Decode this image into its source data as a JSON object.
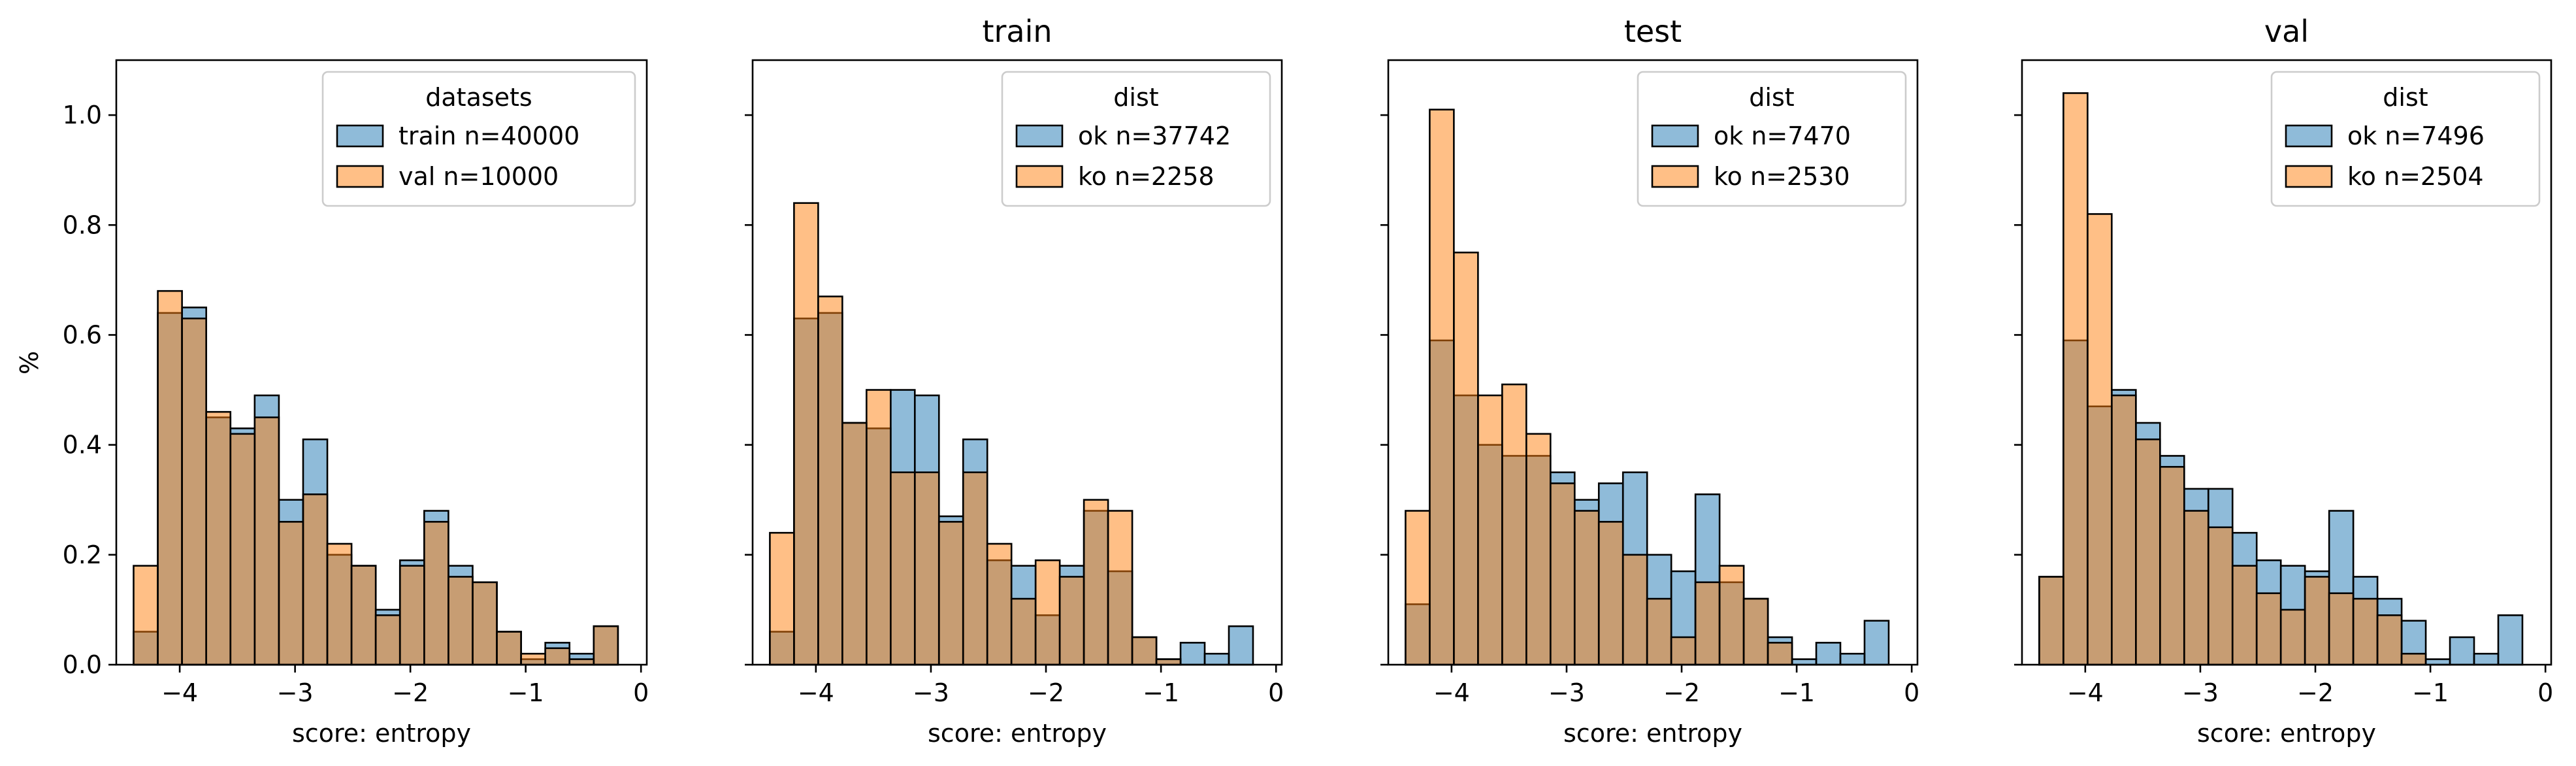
{
  "chart_data": [
    {
      "type": "bar",
      "title": "",
      "xlabel": "score: entropy",
      "ylabel": "%",
      "xlim": [
        -4.55,
        0.05
      ],
      "ylim": [
        0,
        1.1
      ],
      "xticks": [
        -4,
        -3,
        -2,
        -1,
        0
      ],
      "yticks": [
        0.0,
        0.2,
        0.4,
        0.6,
        0.8,
        1.0
      ],
      "legend": {
        "title": "datasets",
        "placement": "top-right"
      },
      "bin_edges": [
        -4.4,
        -4.19,
        -3.98,
        -3.77,
        -3.56,
        -3.35,
        -3.14,
        -2.93,
        -2.72,
        -2.51,
        -2.3,
        -2.09,
        -1.88,
        -1.67,
        -1.46,
        -1.25,
        -1.04,
        -0.83,
        -0.62,
        -0.41,
        -0.2
      ],
      "series": [
        {
          "name": "train n=40000",
          "color": "#1f77b4",
          "values": [
            0.06,
            0.64,
            0.65,
            0.45,
            0.43,
            0.49,
            0.3,
            0.41,
            0.2,
            0.18,
            0.1,
            0.19,
            0.28,
            0.18,
            0.15,
            0.06,
            0.01,
            0.04,
            0.02,
            0.07
          ]
        },
        {
          "name": "val n=10000",
          "color": "#ff7f0e",
          "values": [
            0.18,
            0.68,
            0.63,
            0.46,
            0.42,
            0.45,
            0.26,
            0.31,
            0.22,
            0.18,
            0.09,
            0.18,
            0.26,
            0.16,
            0.15,
            0.06,
            0.02,
            0.03,
            0.01,
            0.07
          ]
        }
      ]
    },
    {
      "type": "bar",
      "title": "train",
      "xlabel": "score: entropy",
      "ylabel": "",
      "xlim": [
        -4.55,
        0.05
      ],
      "ylim": [
        0,
        1.1
      ],
      "xticks": [
        -4,
        -3,
        -2,
        -1,
        0
      ],
      "yticks": [
        0.0,
        0.2,
        0.4,
        0.6,
        0.8,
        1.0
      ],
      "legend": {
        "title": "dist",
        "placement": "top-right"
      },
      "bin_edges": [
        -4.4,
        -4.19,
        -3.98,
        -3.77,
        -3.56,
        -3.35,
        -3.14,
        -2.93,
        -2.72,
        -2.51,
        -2.3,
        -2.09,
        -1.88,
        -1.67,
        -1.46,
        -1.25,
        -1.04,
        -0.83,
        -0.62,
        -0.41,
        -0.2
      ],
      "series": [
        {
          "name": "ok n=37742",
          "color": "#1f77b4",
          "values": [
            0.06,
            0.63,
            0.64,
            0.44,
            0.43,
            0.5,
            0.49,
            0.27,
            0.41,
            0.19,
            0.18,
            0.09,
            0.18,
            0.28,
            0.17,
            0.05,
            0.01,
            0.04,
            0.02,
            0.07
          ]
        },
        {
          "name": "ko n=2258",
          "color": "#ff7f0e",
          "values": [
            0.24,
            0.84,
            0.67,
            0.44,
            0.5,
            0.35,
            0.35,
            0.26,
            0.35,
            0.22,
            0.12,
            0.19,
            0.16,
            0.3,
            0.28,
            0.05,
            0.01,
            0.0,
            0.0,
            0.0
          ]
        }
      ]
    },
    {
      "type": "bar",
      "title": "test",
      "xlabel": "score: entropy",
      "ylabel": "",
      "xlim": [
        -4.55,
        0.05
      ],
      "ylim": [
        0,
        1.1
      ],
      "xticks": [
        -4,
        -3,
        -2,
        -1,
        0
      ],
      "yticks": [
        0.0,
        0.2,
        0.4,
        0.6,
        0.8,
        1.0
      ],
      "legend": {
        "title": "dist",
        "placement": "top-right"
      },
      "bin_edges": [
        -4.4,
        -4.19,
        -3.98,
        -3.77,
        -3.56,
        -3.35,
        -3.14,
        -2.93,
        -2.72,
        -2.51,
        -2.3,
        -2.09,
        -1.88,
        -1.67,
        -1.46,
        -1.25,
        -1.04,
        -0.83,
        -0.62,
        -0.41,
        -0.2
      ],
      "series": [
        {
          "name": "ok n=7470",
          "color": "#1f77b4",
          "values": [
            0.11,
            0.59,
            0.49,
            0.4,
            0.38,
            0.38,
            0.35,
            0.3,
            0.33,
            0.35,
            0.2,
            0.17,
            0.31,
            0.15,
            0.12,
            0.05,
            0.01,
            0.04,
            0.02,
            0.08
          ]
        },
        {
          "name": "ko n=2530",
          "color": "#ff7f0e",
          "values": [
            0.28,
            1.01,
            0.75,
            0.49,
            0.51,
            0.42,
            0.33,
            0.28,
            0.26,
            0.2,
            0.12,
            0.05,
            0.15,
            0.18,
            0.12,
            0.04,
            0.0,
            0.0,
            0.0,
            0.0
          ]
        }
      ]
    },
    {
      "type": "bar",
      "title": "val",
      "xlabel": "score: entropy",
      "ylabel": "",
      "xlim": [
        -4.55,
        0.05
      ],
      "ylim": [
        0,
        1.1
      ],
      "xticks": [
        -4,
        -3,
        -2,
        -1,
        0
      ],
      "yticks": [
        0.0,
        0.2,
        0.4,
        0.6,
        0.8,
        1.0
      ],
      "legend": {
        "title": "dist",
        "placement": "top-right"
      },
      "bin_edges": [
        -4.4,
        -4.19,
        -3.98,
        -3.77,
        -3.56,
        -3.35,
        -3.14,
        -2.93,
        -2.72,
        -2.51,
        -2.3,
        -2.09,
        -1.88,
        -1.67,
        -1.46,
        -1.25,
        -1.04,
        -0.83,
        -0.62,
        -0.41,
        -0.2
      ],
      "series": [
        {
          "name": "ok n=7496",
          "color": "#1f77b4",
          "values": [
            0.16,
            0.59,
            0.47,
            0.5,
            0.44,
            0.38,
            0.32,
            0.32,
            0.24,
            0.19,
            0.18,
            0.17,
            0.28,
            0.16,
            0.12,
            0.08,
            0.01,
            0.05,
            0.02,
            0.09
          ]
        },
        {
          "name": "ko n=2504",
          "color": "#ff7f0e",
          "values": [
            0.16,
            1.04,
            0.82,
            0.49,
            0.41,
            0.36,
            0.28,
            0.25,
            0.18,
            0.13,
            0.1,
            0.16,
            0.13,
            0.12,
            0.09,
            0.02,
            0.0,
            0.0,
            0.0,
            0.0
          ]
        }
      ]
    }
  ]
}
